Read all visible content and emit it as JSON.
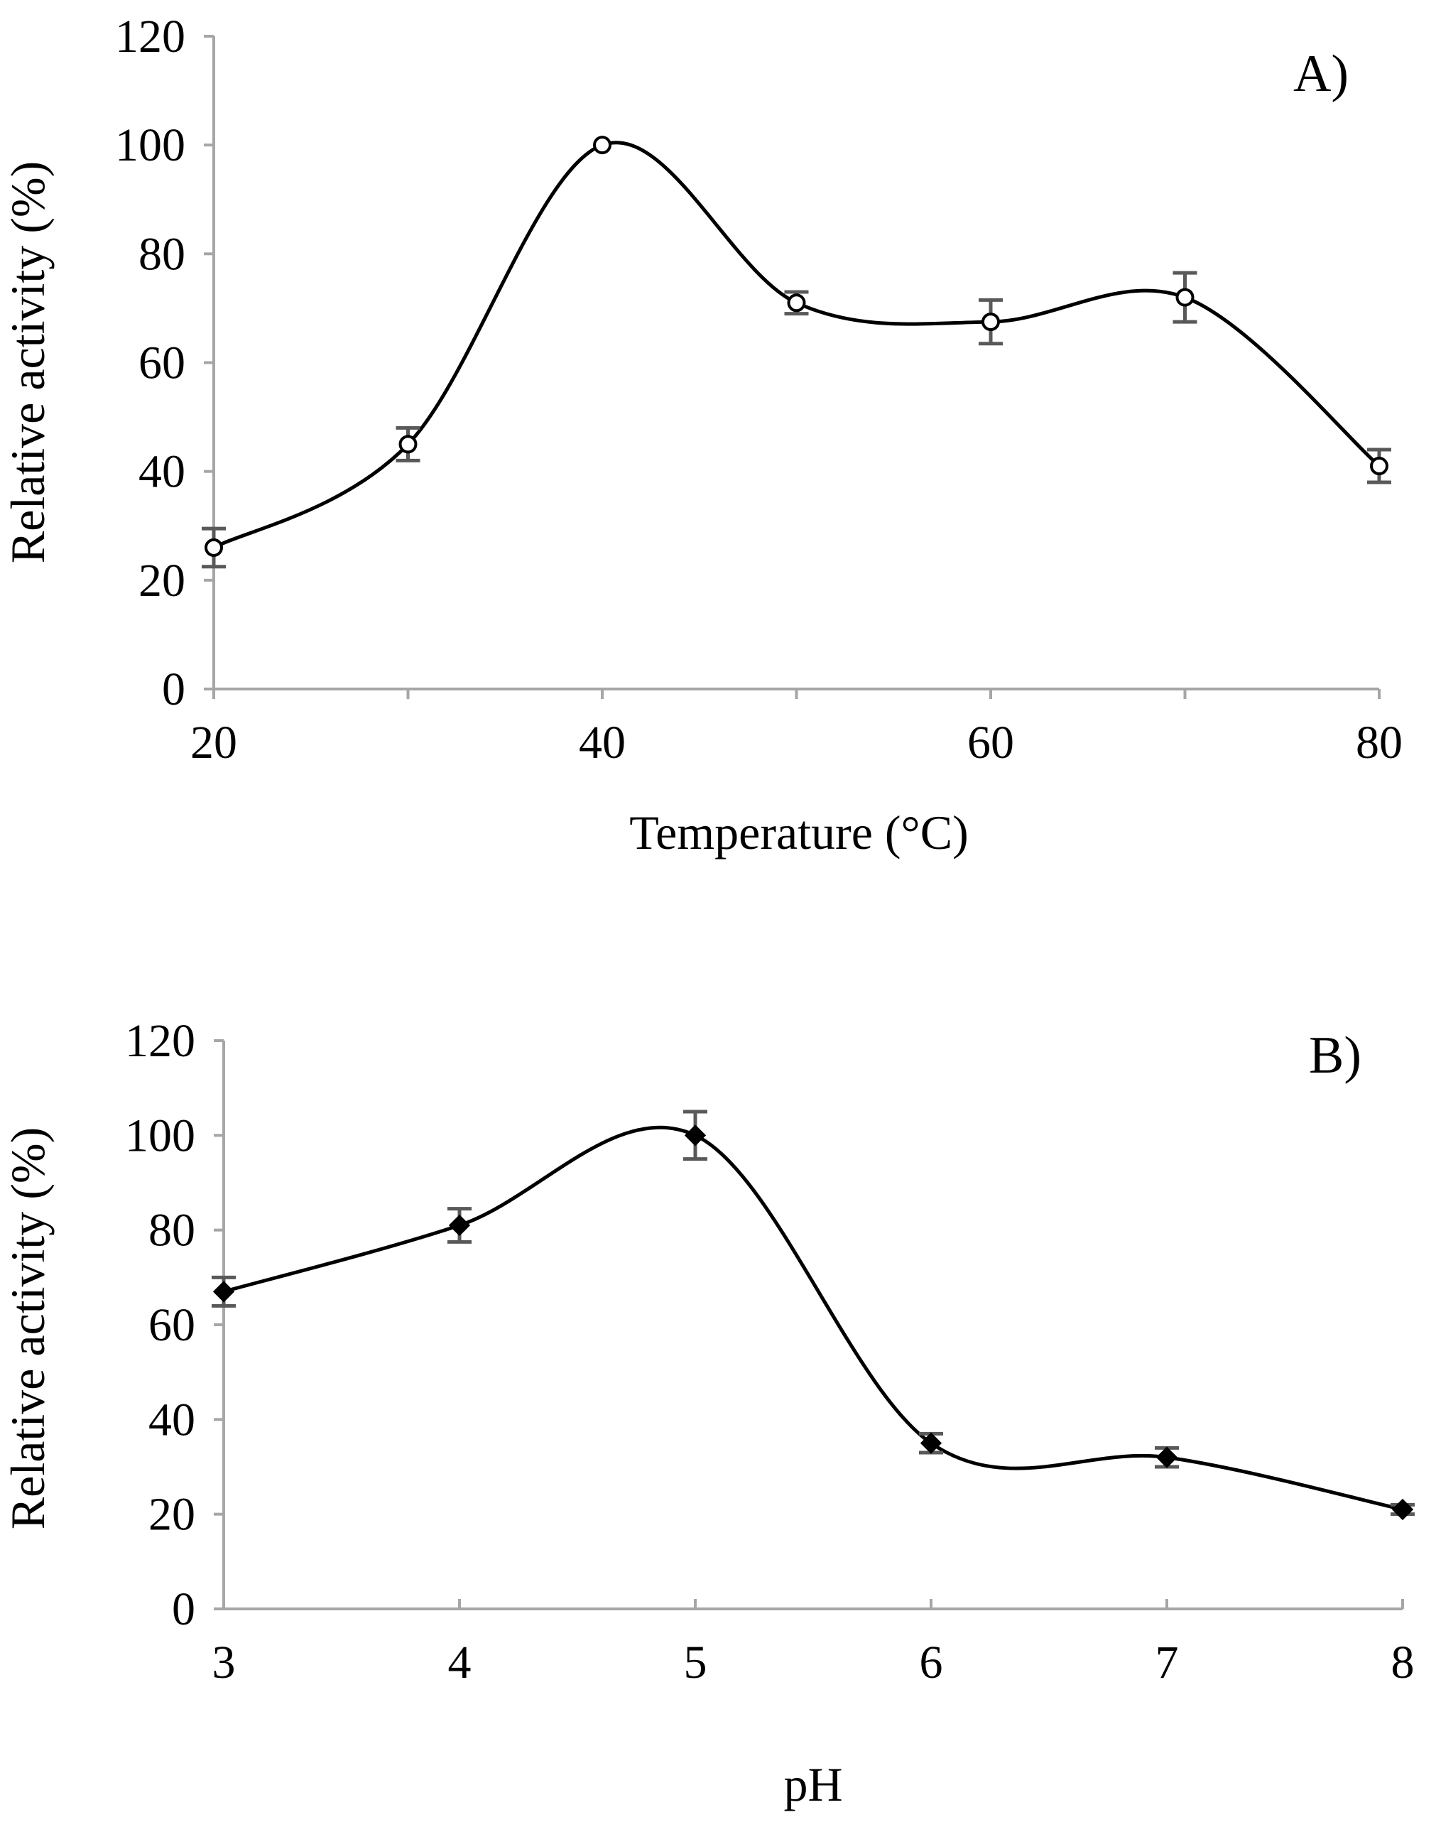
{
  "colors": {
    "axis": "#a6a6a6",
    "curve": "#000000",
    "error_bar": "#595959",
    "marker_fill_a": "#ffffff",
    "marker_fill_b": "#000000"
  },
  "chart_data": [
    {
      "type": "line",
      "panel_label": "A)",
      "title": "",
      "xlabel": "Temperature (°C)",
      "ylabel": "Relative activity (%)",
      "x": [
        20,
        30,
        40,
        50,
        60,
        70,
        80
      ],
      "xticks": [
        20,
        40,
        60,
        80
      ],
      "xtick_labels": [
        "20",
        "40",
        "60",
        "80"
      ],
      "xlim": [
        20,
        80
      ],
      "ylim": [
        0,
        120
      ],
      "yticks": [
        0,
        20,
        40,
        60,
        80,
        100,
        120
      ],
      "ytick_labels": [
        "0",
        "20",
        "40",
        "60",
        "80",
        "100",
        "120"
      ],
      "marker": "circle-open",
      "smooth": true,
      "grid": false,
      "series": [
        {
          "name": "Relative activity",
          "values": [
            26,
            45,
            100,
            71,
            67.5,
            72,
            41
          ],
          "errors": [
            3.5,
            3,
            0,
            2,
            4,
            4.5,
            3
          ]
        }
      ]
    },
    {
      "type": "line",
      "panel_label": "B)",
      "title": "",
      "xlabel": "pH",
      "ylabel": "Relative activity (%)",
      "x": [
        3,
        4,
        5,
        6,
        7,
        8
      ],
      "xticks": [
        3,
        4,
        5,
        6,
        7,
        8
      ],
      "xtick_labels": [
        "3",
        "4",
        "5",
        "6",
        "7",
        "8"
      ],
      "xlim": [
        3,
        8
      ],
      "ylim": [
        0,
        120
      ],
      "yticks": [
        0,
        20,
        40,
        60,
        80,
        100,
        120
      ],
      "ytick_labels": [
        "0",
        "20",
        "40",
        "60",
        "80",
        "100",
        "120"
      ],
      "marker": "diamond-filled",
      "smooth": true,
      "grid": false,
      "series": [
        {
          "name": "Relative activity",
          "values": [
            67,
            81,
            100,
            35,
            32,
            21
          ],
          "errors": [
            3,
            3.5,
            5,
            2,
            2,
            1
          ]
        }
      ]
    }
  ]
}
